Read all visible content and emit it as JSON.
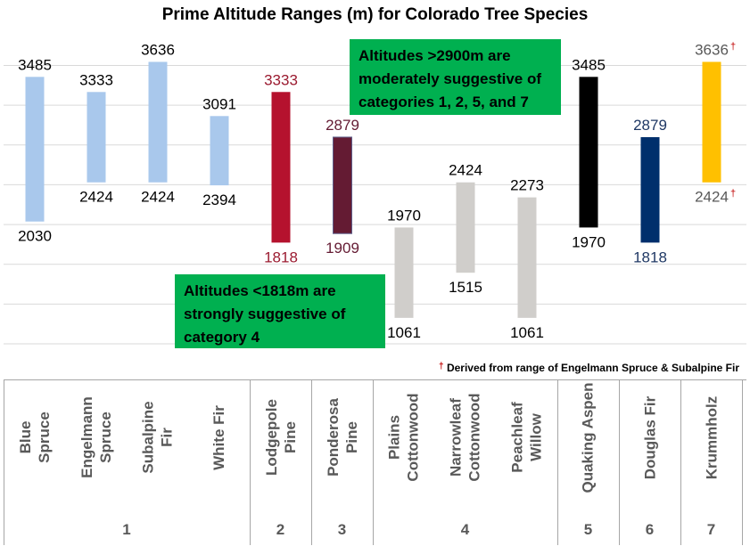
{
  "chart_data": {
    "type": "floating-bar",
    "title": "Prime Altitude Ranges (m) for Colorado Tree Species",
    "unit": "m",
    "series": [
      {
        "name": "Blue Spruce",
        "low": 2030,
        "high": 3485,
        "color": "#a9c8ec",
        "label_color": "#000000",
        "category": "1"
      },
      {
        "name": "Engelmann Spruce",
        "low": 2424,
        "high": 3333,
        "color": "#a9c8ec",
        "label_color": "#000000",
        "category": "1"
      },
      {
        "name": "Subalpine Fir",
        "low": 2424,
        "high": 3636,
        "color": "#a9c8ec",
        "label_color": "#000000",
        "category": "1"
      },
      {
        "name": "White Fir",
        "low": 2394,
        "high": 3091,
        "color": "#a9c8ec",
        "label_color": "#000000",
        "category": "1"
      },
      {
        "name": "Lodgepole Pine",
        "low": 1818,
        "high": 3333,
        "color": "#b5122e",
        "label_color": "#9b1b30",
        "category": "2"
      },
      {
        "name": "Ponderosa Pine",
        "low": 1909,
        "high": 2879,
        "color": "#641b33",
        "label_color": "#641b33",
        "category": "3",
        "outline": "#5e5e8a"
      },
      {
        "name": "Plains Cottonwood",
        "low": 1061,
        "high": 1970,
        "color": "#d0cecb",
        "label_color": "#000000",
        "category": "4"
      },
      {
        "name": "Narrowleaf Cottonwood",
        "low": 1515,
        "high": 2424,
        "color": "#d0cecb",
        "label_color": "#000000",
        "category": "4"
      },
      {
        "name": "Peachleaf Willow",
        "low": 1061,
        "high": 2273,
        "color": "#d0cecb",
        "label_color": "#000000",
        "category": "4"
      },
      {
        "name": "Quaking Aspen",
        "low": 1970,
        "high": 3485,
        "color": "#000000",
        "label_color": "#000000",
        "category": "5"
      },
      {
        "name": "Douglas Fir",
        "low": 1818,
        "high": 2879,
        "color": "#002f6c",
        "label_color": "#1f3864",
        "category": "6"
      },
      {
        "name": "Krummholz",
        "low": 2424,
        "high": 3636,
        "color": "#ffc000",
        "label_color": "#595959",
        "category": "7",
        "dagger": true
      }
    ],
    "value_labels": [
      {
        "high": "3485",
        "low": "2030"
      },
      {
        "high": "3333",
        "low": "2424"
      },
      {
        "high": "3636",
        "low": "2424"
      },
      {
        "high": "3091",
        "low": "2394"
      },
      {
        "high": "3333",
        "low": "1818"
      },
      {
        "high": "2879",
        "low": "1909"
      },
      {
        "high": "1970",
        "low": "1061"
      },
      {
        "high": "2424",
        "low": "1515"
      },
      {
        "high": "2273",
        "low": "1061"
      },
      {
        "high": "3485",
        "low": "1970"
      },
      {
        "high": "2879",
        "low": "1818"
      },
      {
        "high": "3636",
        "low": "2424"
      }
    ],
    "ylim": [
      800,
      3900
    ],
    "grid_step": 400,
    "grid": true
  },
  "callouts": {
    "high": "Altitudes >2900m are moderately suggestive of categories 1, 2, 5, and 7",
    "low": "Altitudes <1818m are strongly suggestive of category 4",
    "color": "#00b050"
  },
  "footnote": {
    "dagger": "†",
    "text": "Derived from range of Engelmann Spruce & Subalpine Fir"
  },
  "table": {
    "columns": [
      {
        "line1": "Blue",
        "line2": "Spruce"
      },
      {
        "line1": "Engelmann",
        "line2": "Spruce"
      },
      {
        "line1": "Subalpine",
        "line2": "Fir"
      },
      {
        "line1": "White Fir",
        "line2": ""
      },
      {
        "line1": "Lodgepole",
        "line2": "Pine"
      },
      {
        "line1": "Ponderosa",
        "line2": "Pine"
      },
      {
        "line1": "Plains",
        "line2": "Cottonwood"
      },
      {
        "line1": "Narrowleaf",
        "line2": "Cottonwood"
      },
      {
        "line1": "Peachleaf",
        "line2": "Willow"
      },
      {
        "line1": "Quaking Aspen",
        "line2": ""
      },
      {
        "line1": "Douglas Fir",
        "line2": ""
      },
      {
        "line1": "Krummholz",
        "line2": ""
      }
    ],
    "groups": [
      "1",
      "2",
      "3",
      "4",
      "5",
      "6",
      "7"
    ]
  }
}
